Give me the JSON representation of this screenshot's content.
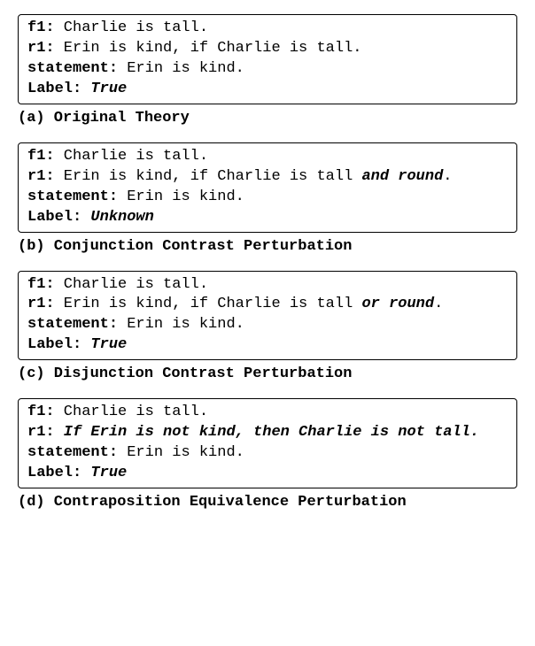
{
  "boxes": [
    {
      "f1_label": "f1:",
      "f1_text": " Charlie is tall.",
      "r1_label": "r1:",
      "r1_text": " Erin is kind, if Charlie is tall.",
      "r1_emph": "",
      "stmt_label": "statement:",
      "stmt_text": " Erin is kind.",
      "label_label": "Label: ",
      "label_value": "True",
      "caption": "(a) Original Theory"
    },
    {
      "f1_label": "f1:",
      "f1_text": " Charlie is tall.",
      "r1_label": "r1:",
      "r1_text": " Erin is kind, if Charlie is tall ",
      "r1_emph": "and round",
      "r1_after": ".",
      "stmt_label": "statement:",
      "stmt_text": " Erin is kind.",
      "label_label": "Label: ",
      "label_value": "Unknown",
      "caption": "(b) Conjunction Contrast Perturbation"
    },
    {
      "f1_label": "f1:",
      "f1_text": " Charlie is tall.",
      "r1_label": "r1:",
      "r1_text": " Erin is kind, if Charlie is tall ",
      "r1_emph": "or round",
      "r1_after": ".",
      "stmt_label": "statement:",
      "stmt_text": " Erin is kind.",
      "label_label": "Label: ",
      "label_value": "True",
      "caption": "(c) Disjunction Contrast Perturbation"
    },
    {
      "f1_label": "f1:",
      "f1_text": " Charlie is tall.",
      "r1_label": "r1:",
      "r1_full_emph": " If Erin is not kind, then Charlie is not tall.",
      "stmt_label": "statement:",
      "stmt_text": " Erin is kind.",
      "label_label": "Label: ",
      "label_value": "True",
      "caption": "(d) Contraposition Equivalence Perturbation"
    }
  ]
}
